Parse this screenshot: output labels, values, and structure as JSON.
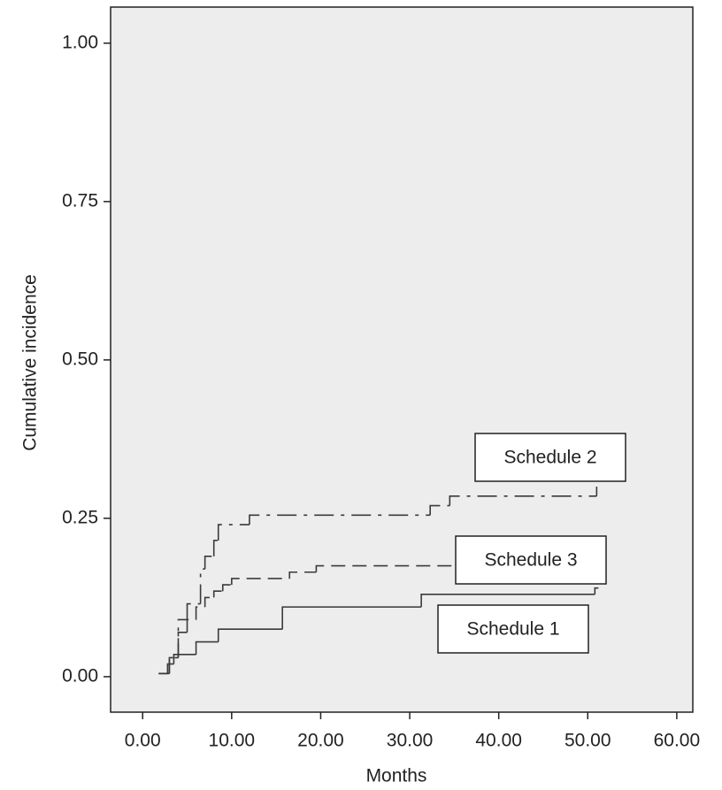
{
  "chart_data": {
    "type": "step-line",
    "x_label": "Months",
    "y_label": "Cumulative incidence",
    "xlim": [
      -3.6,
      61.8
    ],
    "ylim": [
      -0.056,
      1.057
    ],
    "xticks": [
      {
        "value": 0,
        "label": "0.00"
      },
      {
        "value": 10,
        "label": "10.00"
      },
      {
        "value": 20,
        "label": "20.00"
      },
      {
        "value": 30,
        "label": "30.00"
      },
      {
        "value": 40,
        "label": "40.00"
      },
      {
        "value": 50,
        "label": "50.00"
      },
      {
        "value": 60,
        "label": "60.00"
      }
    ],
    "yticks": [
      {
        "value": 0,
        "label": "0.00"
      },
      {
        "value": 0.25,
        "label": "0.25"
      },
      {
        "value": 0.5,
        "label": "0.50"
      },
      {
        "value": 0.75,
        "label": "0.75"
      },
      {
        "value": 1,
        "label": "1.00"
      }
    ],
    "grid": false,
    "series": [
      {
        "name": "Schedule 1",
        "color": "#3a3a3a",
        "dash": "none",
        "x": [
          1.8,
          2.8,
          3.5,
          6.0,
          8.5,
          15.7,
          31.3,
          50.8,
          51.2
        ],
        "values": [
          0.005,
          0.02,
          0.035,
          0.055,
          0.075,
          0.11,
          0.13,
          0.14,
          0.14
        ]
      },
      {
        "name": "Schedule 2",
        "color": "#3a3a3a",
        "dash": "22 8 4 8",
        "x": [
          1.8,
          3,
          4,
          5,
          6.5,
          7,
          8,
          8.5,
          12,
          32.3,
          34.5,
          51
        ],
        "values": [
          0.005,
          0.03,
          0.09,
          0.115,
          0.17,
          0.19,
          0.215,
          0.24,
          0.255,
          0.27,
          0.285,
          0.3
        ]
      },
      {
        "name": "Schedule 3",
        "color": "#3a3a3a",
        "dash": "16 8",
        "x": [
          1.8,
          3,
          4,
          5,
          6,
          7,
          8,
          9,
          10,
          16.5,
          19.5,
          51
        ],
        "values": [
          0.005,
          0.03,
          0.07,
          0.09,
          0.11,
          0.125,
          0.135,
          0.145,
          0.155,
          0.165,
          0.175,
          0.175
        ]
      }
    ]
  }
}
